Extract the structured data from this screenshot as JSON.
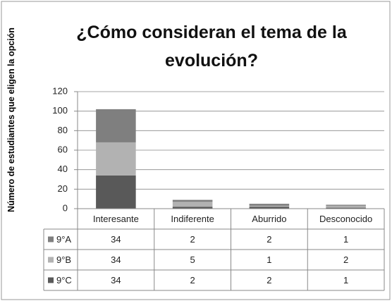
{
  "chart_data": {
    "type": "stacked_bar",
    "title": "¿Cómo consideran el tema de la evolución?",
    "y_label": "Número de estudiantes que eligen la opción",
    "categories": [
      "Interesante",
      "Indiferente",
      "Aburrido",
      "Desconocido"
    ],
    "series": [
      {
        "name": "9°A",
        "color": "#7f7f7f",
        "values": [
          34,
          2,
          2,
          1
        ]
      },
      {
        "name": "9°B",
        "color": "#b2b2b2",
        "values": [
          34,
          5,
          1,
          2
        ]
      },
      {
        "name": "9°C",
        "color": "#595959",
        "values": [
          34,
          2,
          2,
          1
        ]
      }
    ],
    "stack_order": "bottom-up-last-series-first",
    "ylim": [
      0,
      120
    ],
    "yticks": [
      0,
      20,
      40,
      60,
      80,
      100,
      120
    ],
    "grid": true
  }
}
